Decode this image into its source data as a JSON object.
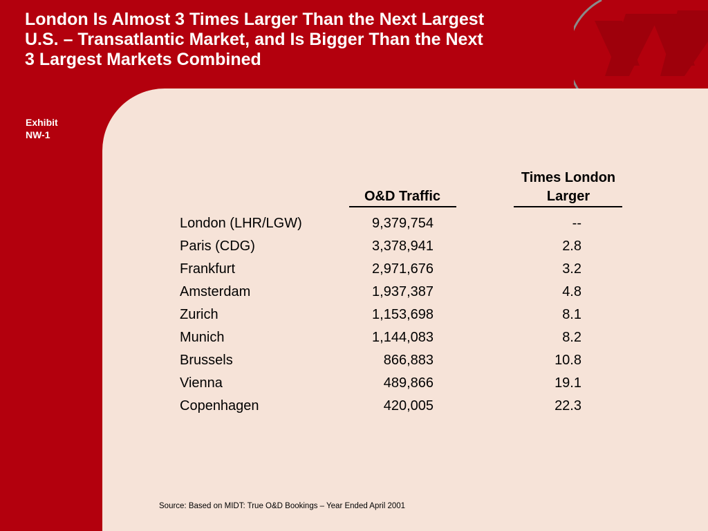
{
  "slide": {
    "title_lines": [
      "London Is Almost 3 Times Larger Than the Next Largest",
      "U.S. – Transatlantic Market, and Is Bigger Than the Next",
      "3 Largest Markets Combined"
    ],
    "exhibit_label": "Exhibit",
    "exhibit_id": "NW-1",
    "colors": {
      "background": "#b3000d",
      "panel": "#f6e3d8",
      "title_text": "#ffffff"
    },
    "logo_icon": "airline-logo-watermark"
  },
  "table": {
    "headers": {
      "traffic": "O&D Traffic",
      "times_line1": "Times London",
      "times_line2": "Larger"
    },
    "rows": [
      {
        "market": "London (LHR/LGW)",
        "traffic": "9,379,754",
        "times": "--"
      },
      {
        "market": "Paris (CDG)",
        "traffic": "3,378,941",
        "times": "2.8"
      },
      {
        "market": "Frankfurt",
        "traffic": "2,971,676",
        "times": "3.2"
      },
      {
        "market": "Amsterdam",
        "traffic": "1,937,387",
        "times": "4.8"
      },
      {
        "market": "Zurich",
        "traffic": "1,153,698",
        "times": "8.1"
      },
      {
        "market": "Munich",
        "traffic": "1,144,083",
        "times": "8.2"
      },
      {
        "market": "Brussels",
        "traffic": "866,883",
        "times": "10.8"
      },
      {
        "market": "Vienna",
        "traffic": "489,866",
        "times": "19.1"
      },
      {
        "market": "Copenhagen",
        "traffic": "420,005",
        "times": "22.3"
      }
    ]
  },
  "source": "Source:  Based on MIDT: True O&D Bookings – Year Ended April 2001"
}
